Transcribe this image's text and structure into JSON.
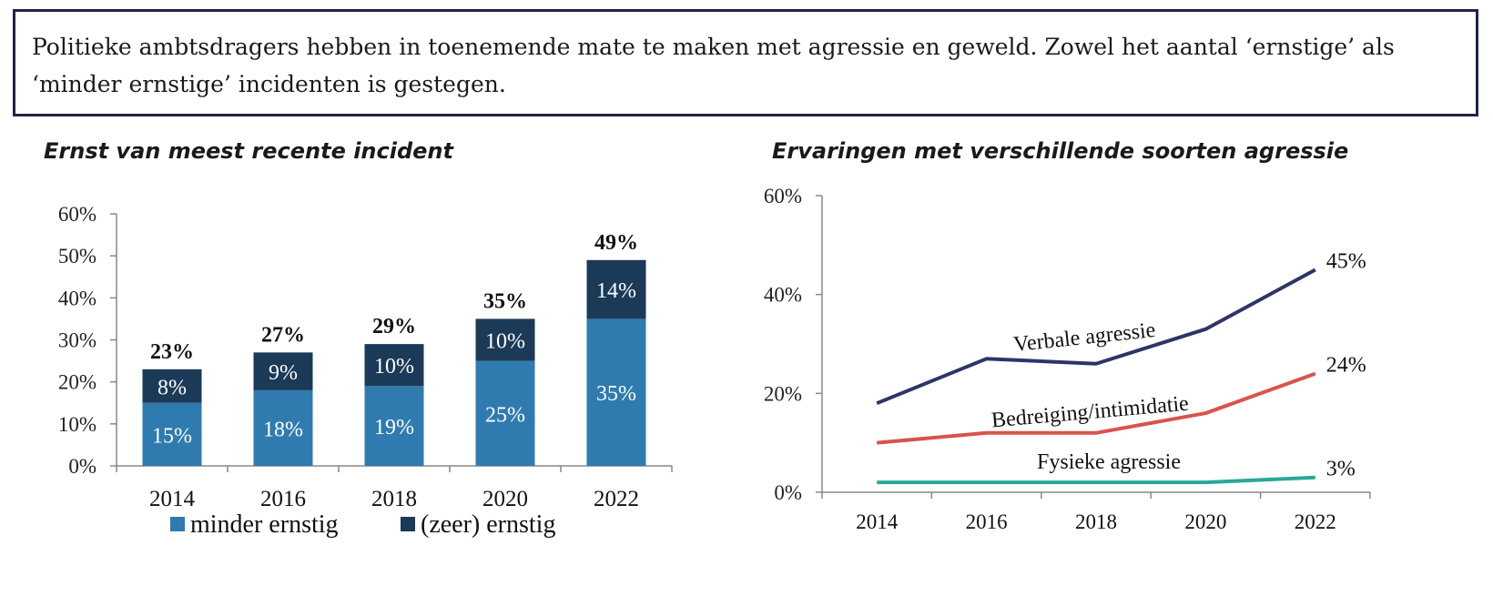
{
  "headline": "Politieke ambtsdragers hebben in toenemende mate te maken met agressie en geweld. Zowel het aantal ‘ernstige’ als ‘minder ernstige’ incidenten is gestegen.",
  "colors": {
    "minder": "#2f7bb0",
    "ernstig": "#1b3a57",
    "verbale": "#2f3468",
    "bedreiging": "#d9534f",
    "fysieke": "#2aa89a",
    "border": "#1f2547"
  },
  "chart_data": [
    {
      "type": "bar",
      "stacked": true,
      "title": "Ernst van meest recente incident",
      "categories": [
        "2014",
        "2016",
        "2018",
        "2020",
        "2022"
      ],
      "series": [
        {
          "name": "minder ernstig",
          "values": [
            15,
            18,
            19,
            25,
            35
          ],
          "labels": [
            "15%",
            "18%",
            "19%",
            "25%",
            "35%"
          ]
        },
        {
          "name": "(zeer) ernstig",
          "values": [
            8,
            9,
            10,
            10,
            14
          ],
          "labels": [
            "8%",
            "9%",
            "10%",
            "10%",
            "14%"
          ]
        }
      ],
      "totals": [
        23,
        27,
        29,
        35,
        49
      ],
      "total_labels": [
        "23%",
        "27%",
        "29%",
        "35%",
        "49%"
      ],
      "ylim": [
        0,
        60
      ],
      "y_ticks": [
        "0%",
        "10%",
        "20%",
        "30%",
        "40%",
        "50%",
        "60%"
      ],
      "legend_position": "bottom"
    },
    {
      "type": "line",
      "title": "Ervaringen met verschillende soorten agressie",
      "x": [
        "2014",
        "2016",
        "2018",
        "2020",
        "2022"
      ],
      "series": [
        {
          "name": "Verbale agressie",
          "values": [
            18,
            27,
            26,
            33,
            45
          ],
          "end_label": "45%"
        },
        {
          "name": "Bedreiging/intimidatie",
          "values": [
            10,
            12,
            12,
            16,
            24
          ],
          "end_label": "24%"
        },
        {
          "name": "Fysieke agressie",
          "values": [
            2,
            2,
            2,
            2,
            3
          ],
          "end_label": "3%"
        }
      ],
      "ylim": [
        0,
        60
      ],
      "y_ticks": [
        "0%",
        "20%",
        "40%",
        "60%"
      ]
    }
  ]
}
